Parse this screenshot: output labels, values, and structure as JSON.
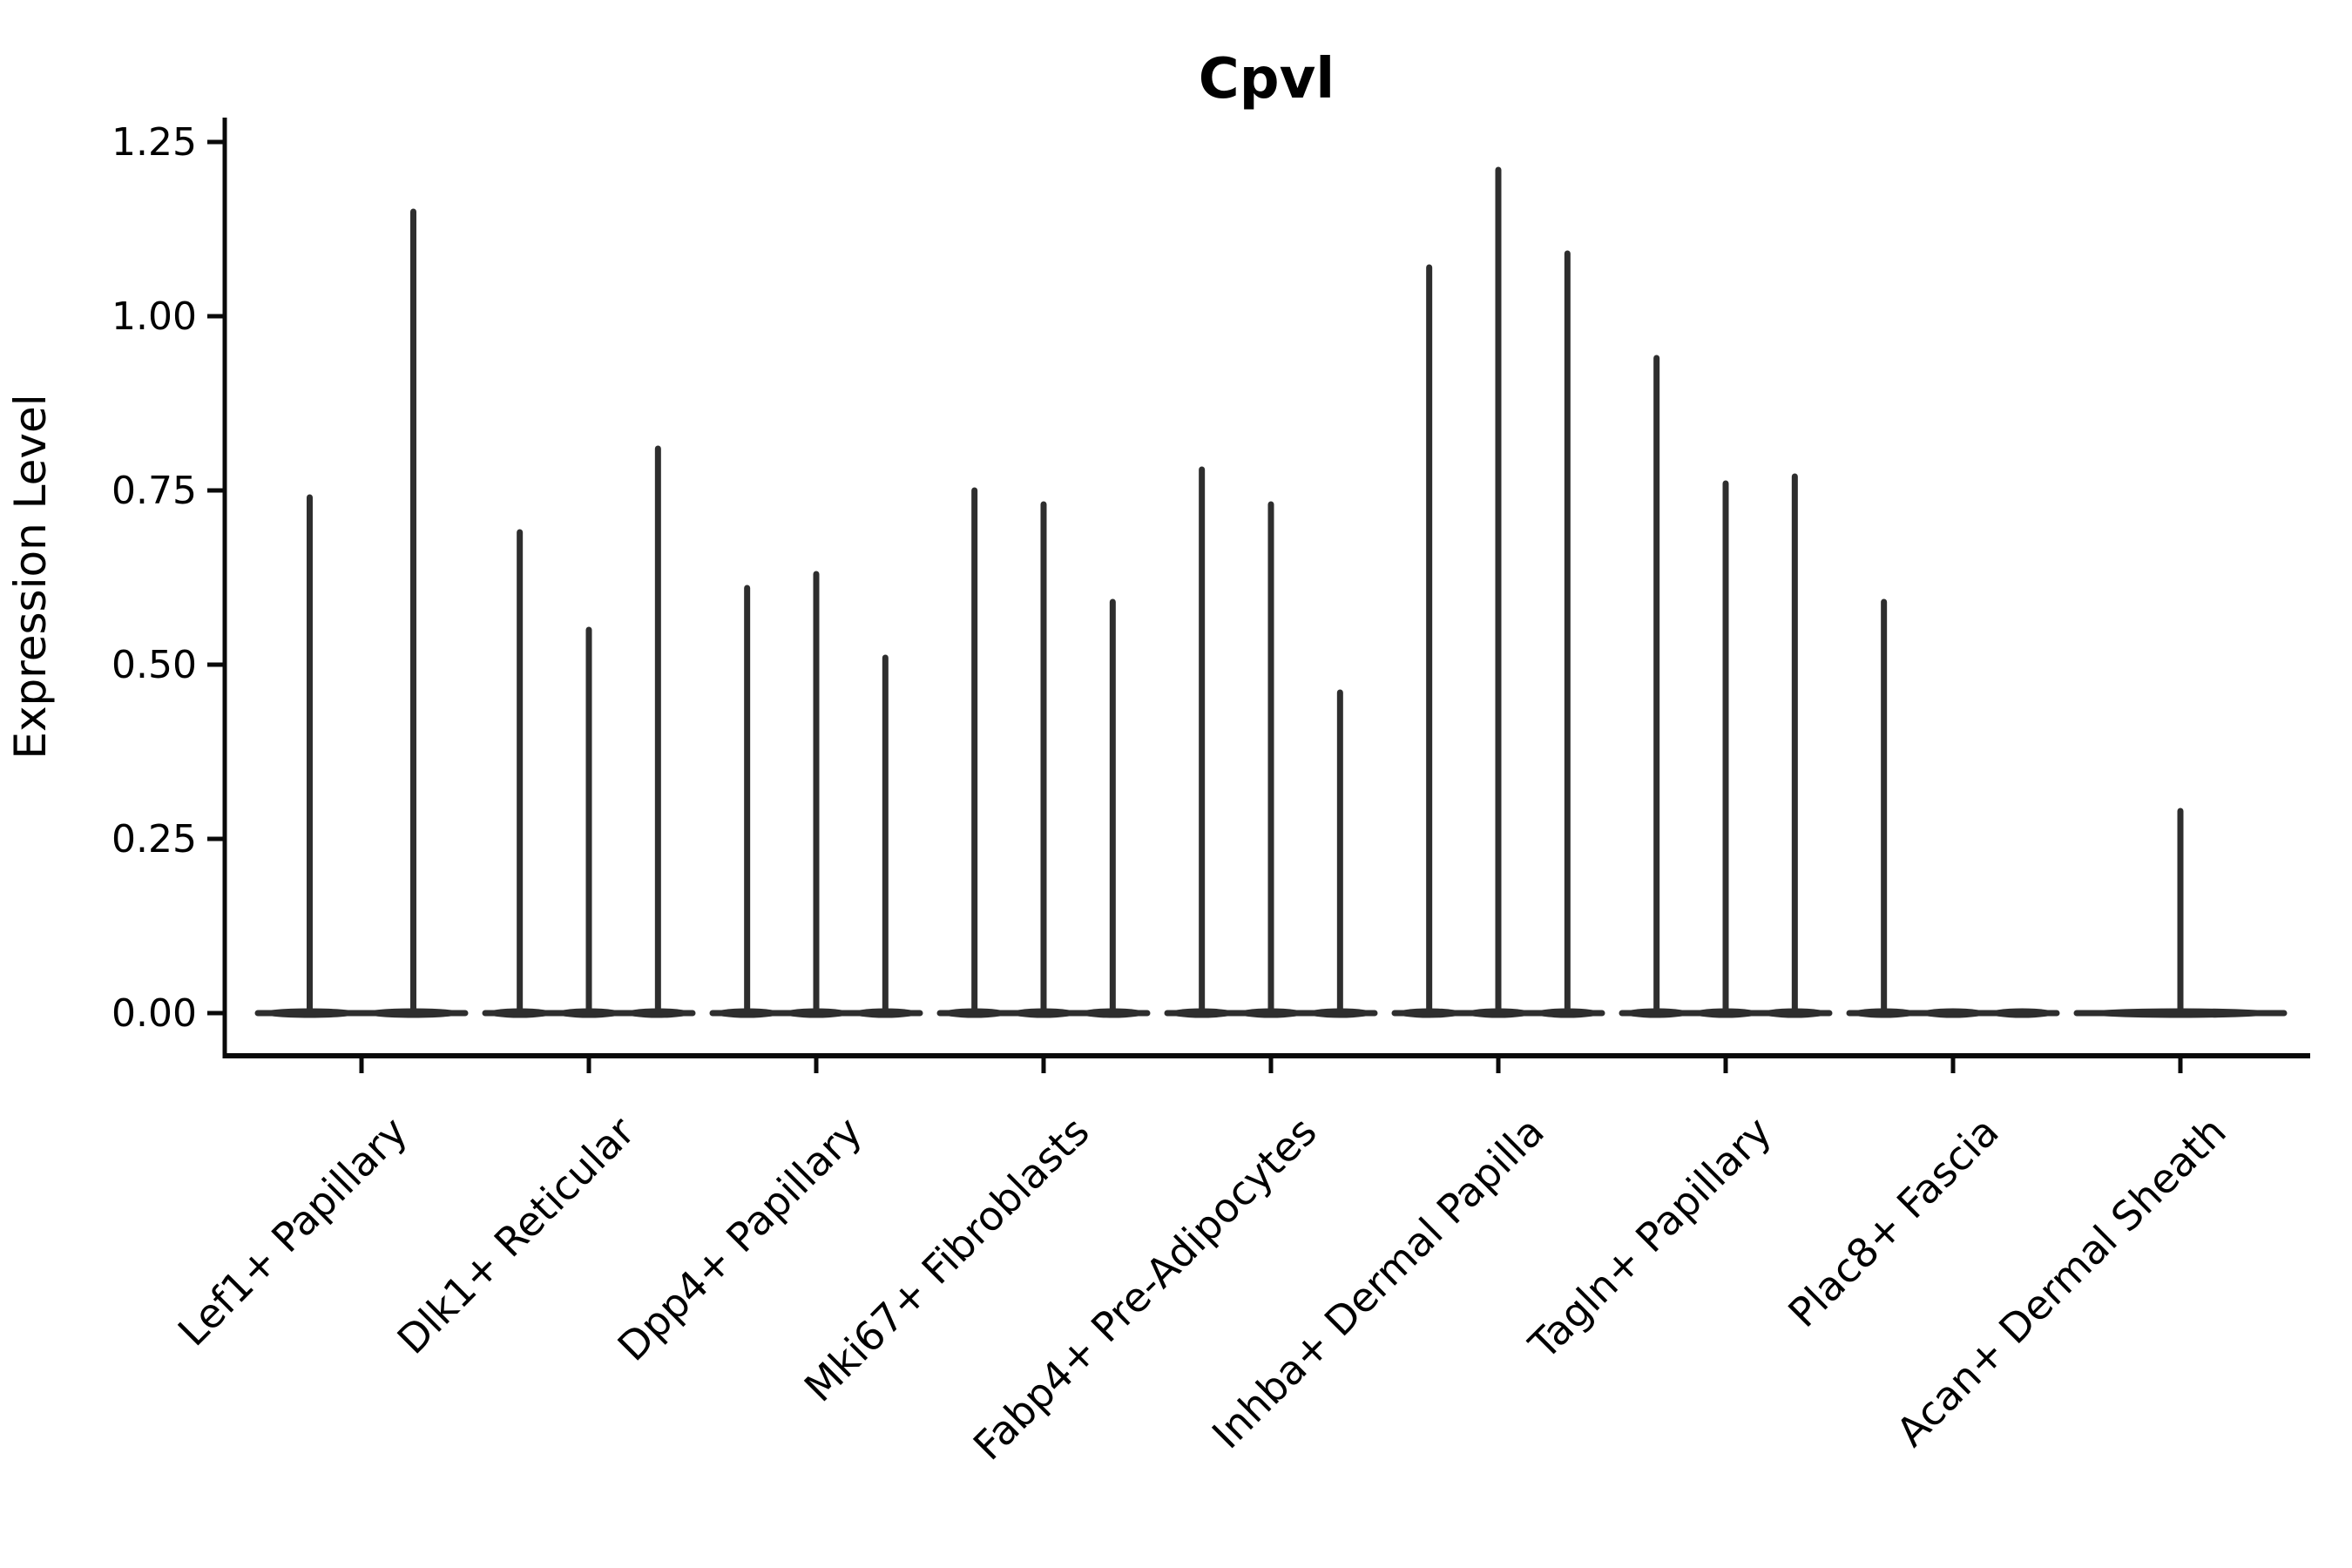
{
  "chart_data": {
    "type": "violin",
    "title": "Cpvl",
    "ylabel": "Expression Level",
    "xlabel": "",
    "ylim": [
      -0.06,
      1.28
    ],
    "grid": false,
    "legend": "none",
    "ytick_labels": [
      "0.00",
      "0.25",
      "0.50",
      "0.75",
      "1.00",
      "1.25"
    ],
    "ytick_values": [
      0.0,
      0.25,
      0.5,
      0.75,
      1.0,
      1.25
    ],
    "categories": [
      "Lef1+ Papillary",
      "Dlk1+ Reticular",
      "Dpp4+ Papillary",
      "Mki67+ Fibroblasts",
      "Fabp4+ Pre-Adipocytes",
      "Inhba+ Dermal Papilla",
      "Tagln+ Papillary",
      "Plac8+ Fascia",
      "Acan+ Dermal Sheath"
    ],
    "series": [
      {
        "category": "Lef1+ Papillary",
        "violin_max_values": [
          0.74,
          1.15
        ]
      },
      {
        "category": "Dlk1+ Reticular",
        "violin_max_values": [
          0.69,
          0.55,
          0.81
        ]
      },
      {
        "category": "Dpp4+ Papillary",
        "violin_max_values": [
          0.61,
          0.63,
          0.51
        ]
      },
      {
        "category": "Mki67+ Fibroblasts",
        "violin_max_values": [
          0.75,
          0.73,
          0.59
        ]
      },
      {
        "category": "Fabp4+ Pre-Adipocytes",
        "violin_max_values": [
          0.78,
          0.73,
          0.46
        ]
      },
      {
        "category": "Inhba+ Dermal Papilla",
        "violin_max_values": [
          1.07,
          1.21,
          1.09
        ]
      },
      {
        "category": "Tagln+ Papillary",
        "violin_max_values": [
          0.94,
          0.76,
          0.77
        ]
      },
      {
        "category": "Plac8+ Fascia",
        "violin_max_values": [
          0.59,
          0.0,
          0.0
        ]
      },
      {
        "category": "Acan+ Dermal Sheath",
        "violin_max_values": [
          0.29
        ]
      }
    ],
    "colors": {
      "violin_ink": "#2e2e2e",
      "axis_ink": "#0a0a0a",
      "background": "#ffffff"
    }
  }
}
